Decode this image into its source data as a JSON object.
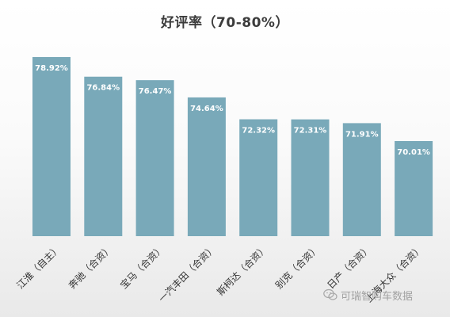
{
  "chart_data": {
    "type": "bar",
    "title": "好评率（70-80%）",
    "categories": [
      "江淮（自主）",
      "奔驰（合资）",
      "宝马（合资）",
      "一汽丰田（合资）",
      "斯柯达（合资）",
      "别克（合资）",
      "日产（合资）",
      "上海大众（合资）"
    ],
    "values": [
      78.92,
      76.84,
      76.47,
      74.64,
      72.32,
      72.31,
      71.91,
      70.01
    ],
    "data_labels": [
      "78.92%",
      "76.84%",
      "76.47%",
      "74.64%",
      "72.32%",
      "72.31%",
      "71.91%",
      "70.01%"
    ],
    "xlabel": "",
    "ylabel": "",
    "ylim": [
      60,
      80
    ],
    "grid": false,
    "bar_color": "#79A9B9"
  },
  "watermark": {
    "text": "可瑞智购车数据",
    "icon": "wechat-icon"
  }
}
